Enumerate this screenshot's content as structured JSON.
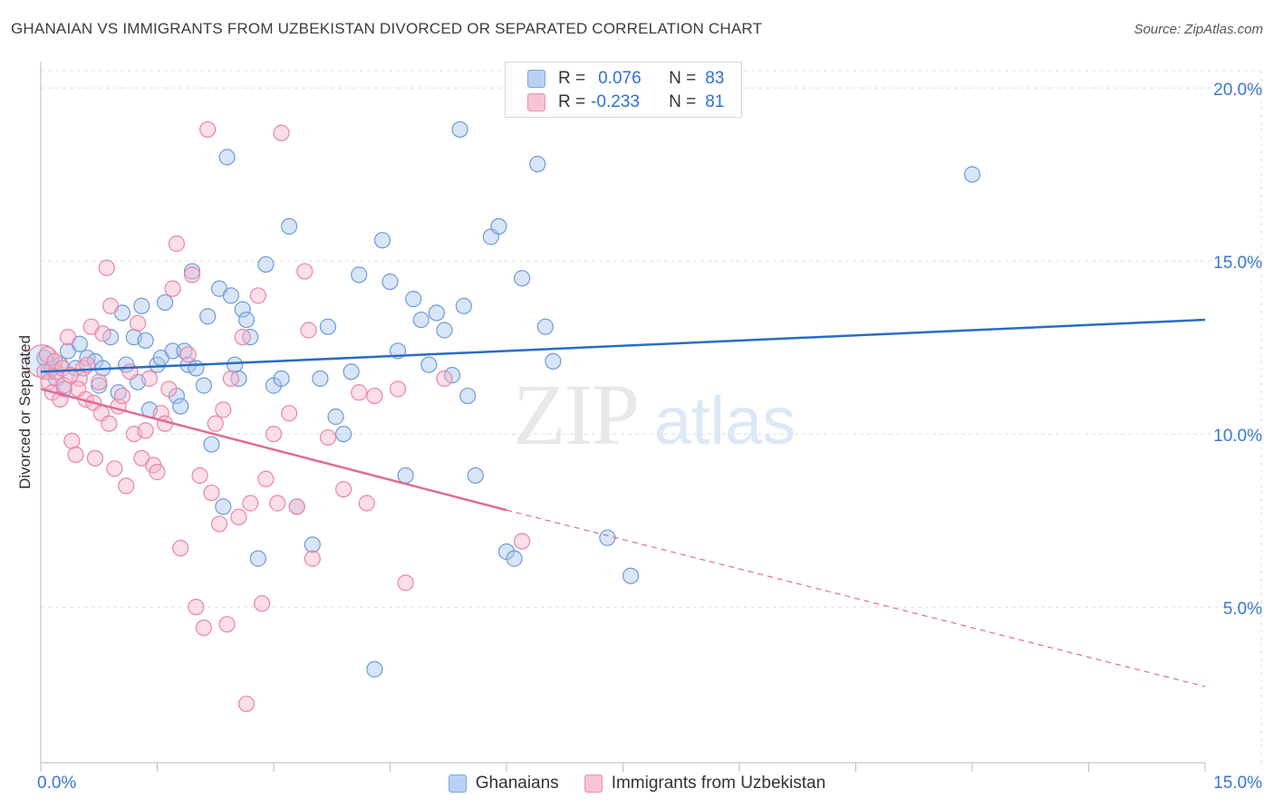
{
  "title": "GHANAIAN VS IMMIGRANTS FROM UZBEKISTAN DIVORCED OR SEPARATED CORRELATION CHART",
  "source": "Source: ZipAtlas.com",
  "watermark": {
    "zip": "ZIP",
    "atlas": "atlas"
  },
  "legend": {
    "rows": [
      {
        "r_label": "R =",
        "r_value": "0.076",
        "n_label": "N =",
        "n_value": "83"
      },
      {
        "r_label": "R =",
        "r_value": "-0.233",
        "n_label": "N =",
        "n_value": "81"
      }
    ]
  },
  "bottom_legend": {
    "series1": "Ghanaians",
    "series2": "Immigrants from Uzbekistan"
  },
  "colors": {
    "blue_fill": "#a9c6ee",
    "blue_stroke": "#6f9ad8",
    "blue_line": "#2a6cc4",
    "pink_fill": "#f5b6cb",
    "pink_stroke": "#e985a8",
    "pink_line": "#e06a98",
    "grid": "#dddddd",
    "tick_text": "#3a78cf"
  },
  "chart_data": {
    "type": "scatter",
    "title": "GHANAIAN VS IMMIGRANTS FROM UZBEKISTAN DIVORCED OR SEPARATED CORRELATION CHART",
    "xlabel": "",
    "ylabel": "Divorced or Separated",
    "xlim": [
      0,
      15
    ],
    "ylim": [
      0.5,
      20.5
    ],
    "x_tick_labels": [
      {
        "v": 0,
        "label": "0.0%"
      },
      {
        "v": 15,
        "label": "15.0%"
      }
    ],
    "y_tick_labels": [
      {
        "v": 5,
        "label": "5.0%"
      },
      {
        "v": 10,
        "label": "10.0%"
      },
      {
        "v": 15,
        "label": "15.0%"
      },
      {
        "v": 20,
        "label": "20.0%"
      }
    ],
    "grid": true,
    "legend_position": "top-center",
    "series": [
      {
        "name": "Ghanaians",
        "r": 0.076,
        "n": 83,
        "trend": {
          "x0": 0.0,
          "y0": 11.8,
          "x1": 15.0,
          "y1": 13.3
        },
        "points": [
          [
            0.05,
            12.2
          ],
          [
            0.1,
            11.8
          ],
          [
            0.15,
            11.9
          ],
          [
            0.2,
            11.6
          ],
          [
            0.25,
            12.0
          ],
          [
            0.3,
            11.3
          ],
          [
            0.35,
            12.4
          ],
          [
            0.45,
            11.9
          ],
          [
            0.5,
            12.6
          ],
          [
            0.6,
            12.2
          ],
          [
            0.7,
            12.1
          ],
          [
            0.75,
            11.4
          ],
          [
            0.8,
            11.9
          ],
          [
            0.9,
            12.8
          ],
          [
            1.0,
            11.2
          ],
          [
            1.05,
            13.5
          ],
          [
            1.1,
            12.0
          ],
          [
            1.2,
            12.8
          ],
          [
            1.25,
            11.5
          ],
          [
            1.3,
            13.7
          ],
          [
            1.35,
            12.7
          ],
          [
            1.4,
            10.7
          ],
          [
            1.5,
            12.0
          ],
          [
            1.55,
            12.2
          ],
          [
            1.6,
            13.8
          ],
          [
            1.7,
            12.4
          ],
          [
            1.75,
            11.1
          ],
          [
            1.8,
            10.8
          ],
          [
            1.85,
            12.4
          ],
          [
            1.9,
            12.0
          ],
          [
            1.95,
            14.7
          ],
          [
            2.0,
            11.9
          ],
          [
            2.1,
            11.4
          ],
          [
            2.15,
            13.4
          ],
          [
            2.2,
            9.7
          ],
          [
            2.3,
            14.2
          ],
          [
            2.35,
            7.9
          ],
          [
            2.4,
            18.0
          ],
          [
            2.45,
            14.0
          ],
          [
            2.5,
            12.0
          ],
          [
            2.55,
            11.6
          ],
          [
            2.6,
            13.6
          ],
          [
            2.65,
            13.3
          ],
          [
            2.7,
            12.8
          ],
          [
            2.8,
            6.4
          ],
          [
            2.9,
            14.9
          ],
          [
            3.0,
            11.4
          ],
          [
            3.1,
            11.6
          ],
          [
            3.2,
            16.0
          ],
          [
            3.3,
            7.9
          ],
          [
            3.5,
            6.8
          ],
          [
            3.6,
            11.6
          ],
          [
            3.7,
            13.1
          ],
          [
            3.8,
            10.5
          ],
          [
            3.9,
            10.0
          ],
          [
            4.0,
            11.8
          ],
          [
            4.1,
            14.6
          ],
          [
            4.3,
            3.2
          ],
          [
            4.4,
            15.6
          ],
          [
            4.5,
            14.4
          ],
          [
            4.6,
            12.4
          ],
          [
            4.7,
            8.8
          ],
          [
            4.8,
            13.9
          ],
          [
            4.9,
            13.3
          ],
          [
            5.0,
            12.0
          ],
          [
            5.1,
            13.5
          ],
          [
            5.2,
            13.0
          ],
          [
            5.3,
            11.7
          ],
          [
            5.4,
            18.8
          ],
          [
            5.45,
            13.7
          ],
          [
            5.5,
            11.1
          ],
          [
            5.6,
            8.8
          ],
          [
            5.8,
            15.7
          ],
          [
            5.9,
            16.0
          ],
          [
            6.0,
            6.6
          ],
          [
            6.1,
            6.4
          ],
          [
            6.2,
            14.5
          ],
          [
            6.4,
            17.8
          ],
          [
            6.5,
            13.1
          ],
          [
            6.6,
            12.1
          ],
          [
            7.3,
            7.0
          ],
          [
            7.6,
            5.9
          ],
          [
            12.0,
            17.5
          ]
        ]
      },
      {
        "name": "Immigrants from Uzbekistan",
        "r": -0.233,
        "n": 81,
        "trend": {
          "x0": 0.0,
          "y0": 11.3,
          "x1": 6.0,
          "y1": 7.8,
          "dash_x1": 15.0,
          "dash_y1": 2.7
        },
        "points": [
          [
            0.05,
            11.8
          ],
          [
            0.1,
            11.5
          ],
          [
            0.15,
            11.2
          ],
          [
            0.2,
            11.8
          ],
          [
            0.25,
            11.0
          ],
          [
            0.3,
            11.4
          ],
          [
            0.35,
            12.8
          ],
          [
            0.4,
            9.8
          ],
          [
            0.45,
            9.4
          ],
          [
            0.5,
            11.6
          ],
          [
            0.55,
            11.9
          ],
          [
            0.6,
            12.0
          ],
          [
            0.65,
            13.1
          ],
          [
            0.7,
            9.3
          ],
          [
            0.75,
            11.5
          ],
          [
            0.8,
            12.9
          ],
          [
            0.85,
            14.8
          ],
          [
            0.9,
            13.7
          ],
          [
            0.95,
            9.0
          ],
          [
            1.0,
            10.8
          ],
          [
            1.05,
            11.1
          ],
          [
            1.1,
            8.5
          ],
          [
            1.15,
            11.8
          ],
          [
            1.2,
            10.0
          ],
          [
            1.25,
            13.2
          ],
          [
            1.3,
            9.3
          ],
          [
            1.35,
            10.1
          ],
          [
            1.4,
            11.6
          ],
          [
            1.45,
            9.1
          ],
          [
            1.5,
            8.9
          ],
          [
            1.55,
            10.6
          ],
          [
            1.6,
            10.3
          ],
          [
            1.65,
            11.3
          ],
          [
            1.7,
            14.2
          ],
          [
            1.75,
            15.5
          ],
          [
            1.8,
            6.7
          ],
          [
            1.9,
            12.3
          ],
          [
            1.95,
            14.6
          ],
          [
            2.0,
            5.0
          ],
          [
            2.05,
            8.8
          ],
          [
            2.1,
            4.4
          ],
          [
            2.15,
            18.8
          ],
          [
            2.2,
            8.3
          ],
          [
            2.25,
            10.3
          ],
          [
            2.3,
            7.4
          ],
          [
            2.35,
            10.7
          ],
          [
            2.4,
            4.5
          ],
          [
            2.45,
            11.6
          ],
          [
            2.55,
            7.6
          ],
          [
            2.6,
            12.8
          ],
          [
            2.65,
            2.2
          ],
          [
            2.7,
            8.0
          ],
          [
            2.8,
            14.0
          ],
          [
            2.85,
            5.1
          ],
          [
            2.9,
            8.7
          ],
          [
            3.0,
            10.0
          ],
          [
            3.05,
            8.0
          ],
          [
            3.1,
            18.7
          ],
          [
            3.2,
            10.6
          ],
          [
            3.3,
            7.9
          ],
          [
            3.4,
            14.7
          ],
          [
            3.45,
            13.0
          ],
          [
            3.5,
            6.4
          ],
          [
            3.7,
            9.9
          ],
          [
            3.9,
            8.4
          ],
          [
            4.1,
            11.2
          ],
          [
            4.2,
            8.0
          ],
          [
            4.3,
            11.1
          ],
          [
            4.6,
            11.3
          ],
          [
            4.7,
            5.7
          ],
          [
            5.2,
            11.6
          ],
          [
            6.2,
            6.9
          ],
          [
            0.08,
            12.3
          ],
          [
            0.18,
            12.1
          ],
          [
            0.28,
            11.9
          ],
          [
            0.38,
            11.7
          ],
          [
            0.48,
            11.3
          ],
          [
            0.58,
            11.0
          ],
          [
            0.68,
            10.9
          ],
          [
            0.78,
            10.6
          ],
          [
            0.88,
            10.3
          ]
        ]
      }
    ]
  }
}
